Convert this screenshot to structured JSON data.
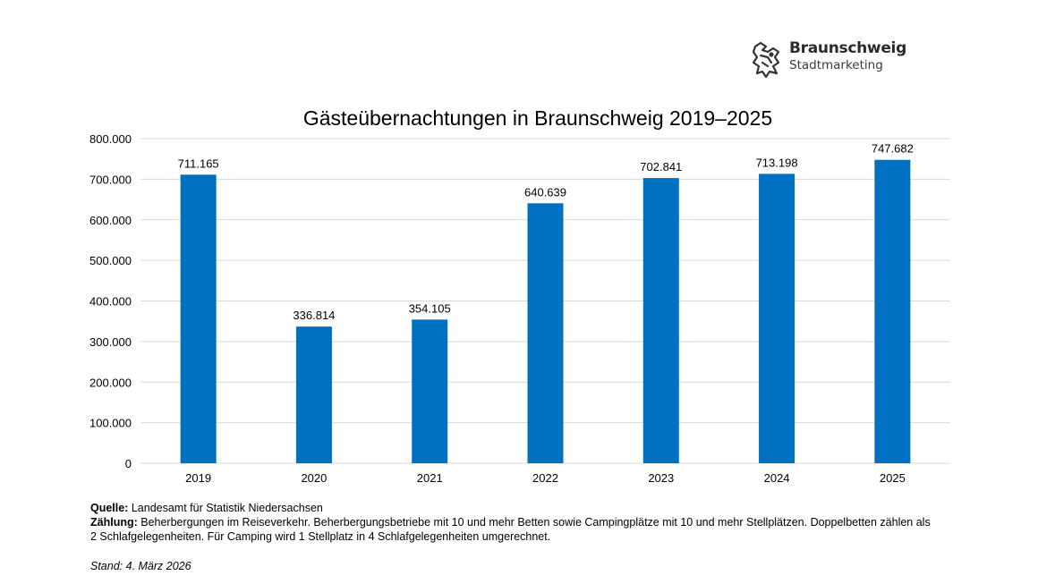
{
  "logo": {
    "name": "Braunschweig",
    "subtitle": "Stadtmarketing"
  },
  "chart_data": {
    "type": "bar",
    "title": "Gästeübernachtungen in Braunschweig 2019–2025",
    "categories": [
      "2019",
      "2020",
      "2021",
      "2022",
      "2023",
      "2024",
      "2025"
    ],
    "values": [
      711165,
      336814,
      354105,
      640639,
      702841,
      713198,
      747682
    ],
    "data_labels": [
      "711.165",
      "336.814",
      "354.105",
      "640.639",
      "702.841",
      "713.198",
      "747.682"
    ],
    "ylim": [
      0,
      800000
    ],
    "yticks": [
      0,
      100000,
      200000,
      300000,
      400000,
      500000,
      600000,
      700000,
      800000
    ],
    "ytick_labels": [
      "0",
      "100.000",
      "200.000",
      "300.000",
      "400.000",
      "500.000",
      "600.000",
      "700.000",
      "800.000"
    ],
    "xlabel": "",
    "ylabel": "",
    "grid": true,
    "legend": "none",
    "bar_color": "#0070C0",
    "grid_color": "#D9D9D9"
  },
  "footnotes": {
    "source_label": "Quelle:",
    "source_text": " Landesamt für Statistik Niedersachsen",
    "count_label": "Zählung:",
    "count_text_line1": " Beherbergungen im Reiseverkehr. Beherbergungsbetriebe mit 10 und mehr Betten sowie Campingplätze mit 10 und mehr Stellplätzen. Doppelbetten zählen als",
    "count_text_line2": "2 Schlafgelegenheiten. Für Camping wird 1 Stellplatz in 4 Schlafgelegenheiten umgerechnet.",
    "stand": "Stand: 4. März 2026"
  }
}
